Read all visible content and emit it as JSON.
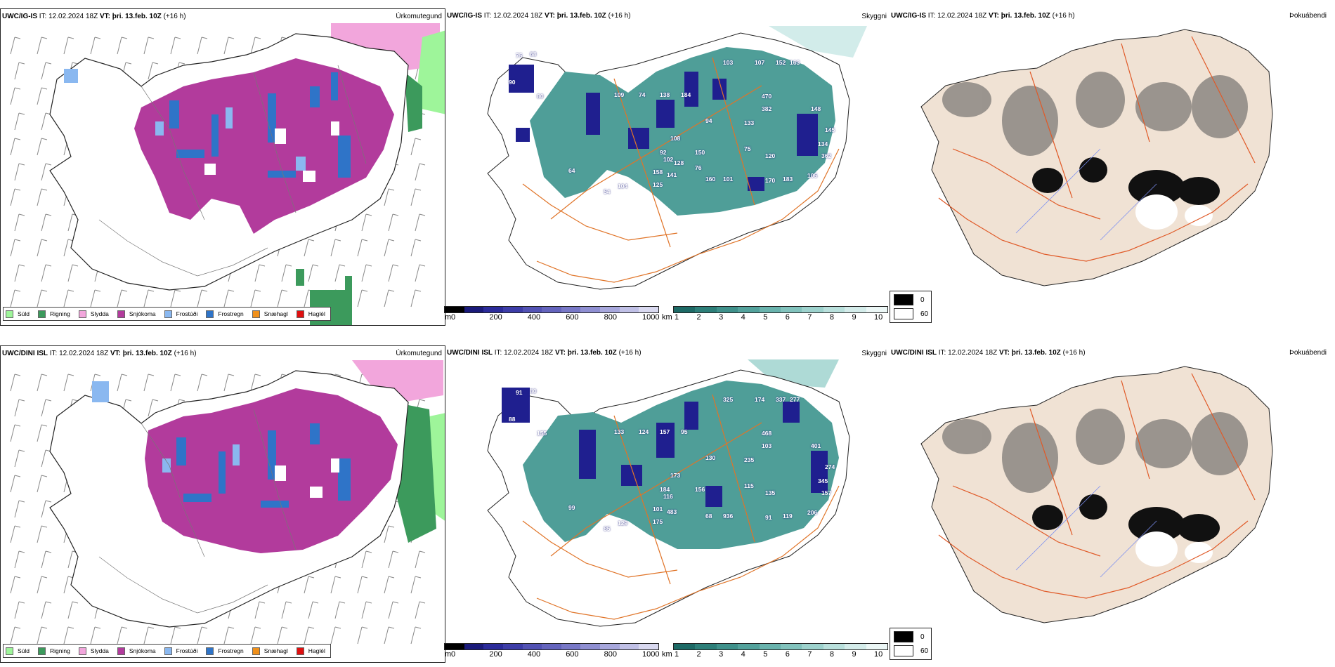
{
  "colors": {
    "sudl": "#9ef59a",
    "rigning": "#3c9a5c",
    "slydda": "#f2a6dc",
    "snjokoma": "#b23b9c",
    "frostudi": "#8ab8f0",
    "frostregn": "#2f74c8",
    "snaehagl": "#f0901a",
    "haglel": "#e01010",
    "cloud_base_dark": "#1a1a8a",
    "visibility_teal": "#2d8b84",
    "roads": "#e07428",
    "land_tan": "#f0e2d4"
  },
  "rows": [
    {
      "model": "UWC/IG-IS",
      "it_label": "IT:",
      "it_value": "12.02.2024 18Z",
      "vt_label": "VT:",
      "vt_value": "þri. 13.feb. 10Z",
      "lead": "(+16 h)",
      "panel_titles": [
        "Úrkomutegund",
        "Skyggni",
        "Þokuábendi"
      ],
      "map_labels": [
        "75",
        "68",
        "90",
        "80",
        "109",
        "74",
        "138",
        "184",
        "103",
        "107",
        "152",
        "163",
        "470",
        "382",
        "133",
        "148",
        "145",
        "94",
        "108",
        "92",
        "150",
        "75",
        "120",
        "362",
        "134",
        "105",
        "183",
        "170",
        "160",
        "101",
        "141",
        "125",
        "104",
        "54",
        "64",
        "158",
        "102",
        "76",
        "128"
      ]
    },
    {
      "model": "UWC/DINI ISL",
      "it_label": "IT:",
      "it_value": "12.02.2024 18Z",
      "vt_label": "VT:",
      "vt_value": "þri. 13.feb. 10Z",
      "lead": "(+16 h)",
      "panel_titles": [
        "Úrkomutegund",
        "Skyggni",
        "Þokuábendi"
      ],
      "map_labels": [
        "91",
        "80",
        "88",
        "155",
        "133",
        "124",
        "157",
        "95",
        "325",
        "174",
        "337",
        "277",
        "468",
        "103",
        "235",
        "401",
        "274",
        "130",
        "173",
        "184",
        "156",
        "115",
        "135",
        "157",
        "345",
        "206",
        "119",
        "91",
        "68",
        "936",
        "483",
        "175",
        "129",
        "85",
        "99",
        "101",
        "116"
      ]
    }
  ],
  "precip_legend": [
    {
      "label": "Súld",
      "color": "#9ef59a"
    },
    {
      "label": "Rigning",
      "color": "#3c9a5c"
    },
    {
      "label": "Slydda",
      "color": "#f2a6dc"
    },
    {
      "label": "Snjókoma",
      "color": "#b23b9c"
    },
    {
      "label": "Frostúði",
      "color": "#8ab8f0"
    },
    {
      "label": "Frostregn",
      "color": "#2f74c8"
    },
    {
      "label": "Snæhagl",
      "color": "#f0901a"
    },
    {
      "label": "Haglél",
      "color": "#e01010"
    }
  ],
  "cloud_base_scale": {
    "unit": "m",
    "ticks": [
      "0",
      "200",
      "400",
      "600",
      "800",
      "1000"
    ],
    "colors": [
      "#000000",
      "#1a1a7a",
      "#2b2b9a",
      "#3d3da8",
      "#5252b4",
      "#6464bd",
      "#7878c7",
      "#8f8fd2",
      "#a7a7dc",
      "#c0c0e6",
      "#d9d9f0"
    ]
  },
  "visibility_scale": {
    "unit": "km",
    "ticks": [
      "1",
      "2",
      "3",
      "4",
      "5",
      "6",
      "7",
      "8",
      "9",
      "10"
    ],
    "colors": [
      "#1d6a66",
      "#2d7f79",
      "#3f918b",
      "#53a29c",
      "#69b3ad",
      "#82c3bd",
      "#9dd2cd",
      "#b9e0dc",
      "#d4ecea",
      "#ecf7f6"
    ]
  },
  "fog_legend": [
    {
      "label": "0",
      "color": "#000000"
    },
    {
      "label": "60",
      "color": "#ffffff"
    }
  ]
}
